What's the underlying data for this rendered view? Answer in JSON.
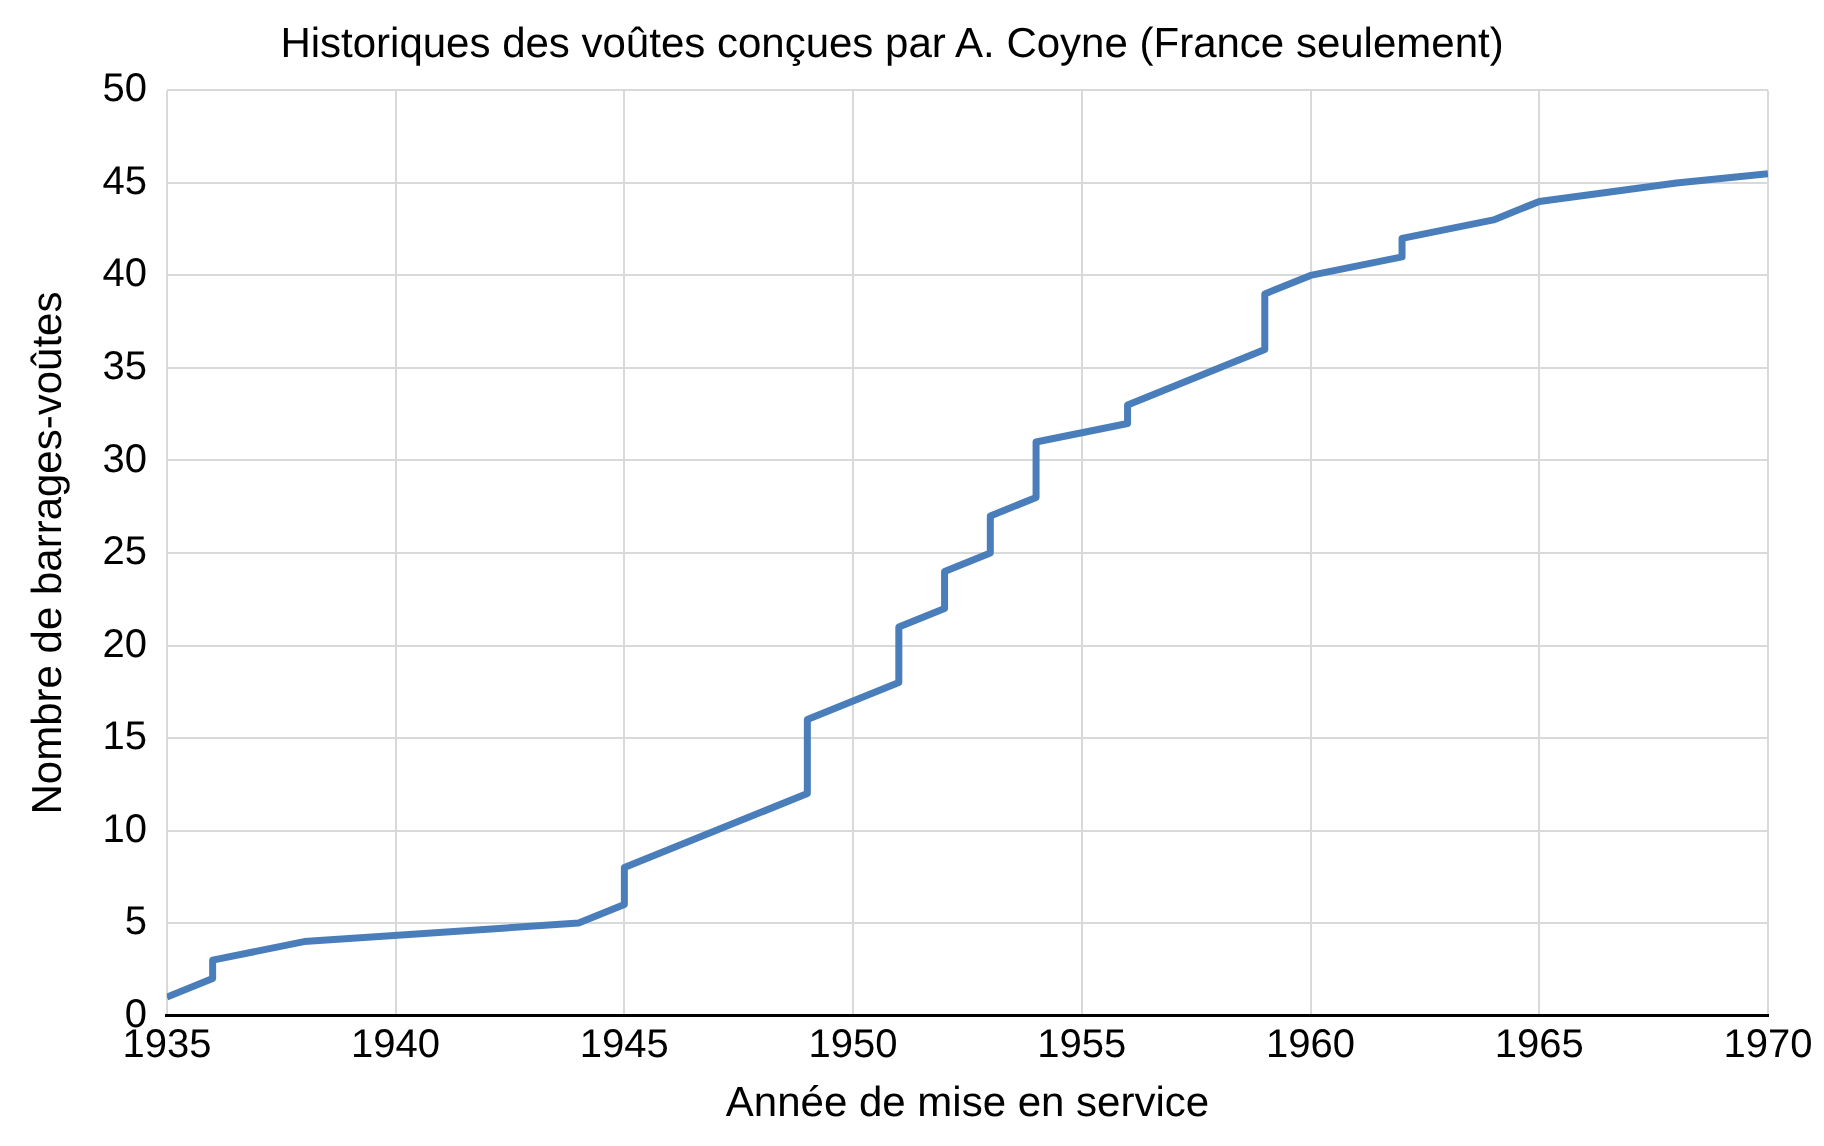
{
  "chart_data": {
    "type": "line",
    "title": "Historiques des voûtes conçues par A. Coyne (France seulement)",
    "xlabel": "Année de mise en service",
    "ylabel": "Nombre de barrages-voûtes",
    "x": [
      1935,
      1936,
      1936,
      1938,
      1944,
      1945,
      1945,
      1949,
      1949,
      1951,
      1951,
      1952,
      1952,
      1953,
      1953,
      1954,
      1954,
      1956,
      1956,
      1959,
      1959,
      1960,
      1962,
      1962,
      1964,
      1965,
      1968,
      1970
    ],
    "series": [
      {
        "color": "#4a7ebb",
        "values": [
          1,
          2,
          3,
          4,
          5,
          6,
          8,
          12,
          16,
          18,
          21,
          22,
          24,
          25,
          27,
          28,
          31,
          32,
          33,
          36,
          39,
          40,
          41,
          42,
          43,
          44,
          45,
          45.5
        ]
      }
    ],
    "xlim": [
      1935,
      1970
    ],
    "xticks": [
      1935,
      1940,
      1945,
      1950,
      1955,
      1960,
      1965,
      1970
    ],
    "ylim": [
      0,
      50
    ],
    "yticks": [
      0,
      5,
      10,
      15,
      20,
      25,
      30,
      35,
      40,
      45,
      50
    ],
    "grid": true,
    "legend": false,
    "marker": "none",
    "line_style": "solid"
  }
}
